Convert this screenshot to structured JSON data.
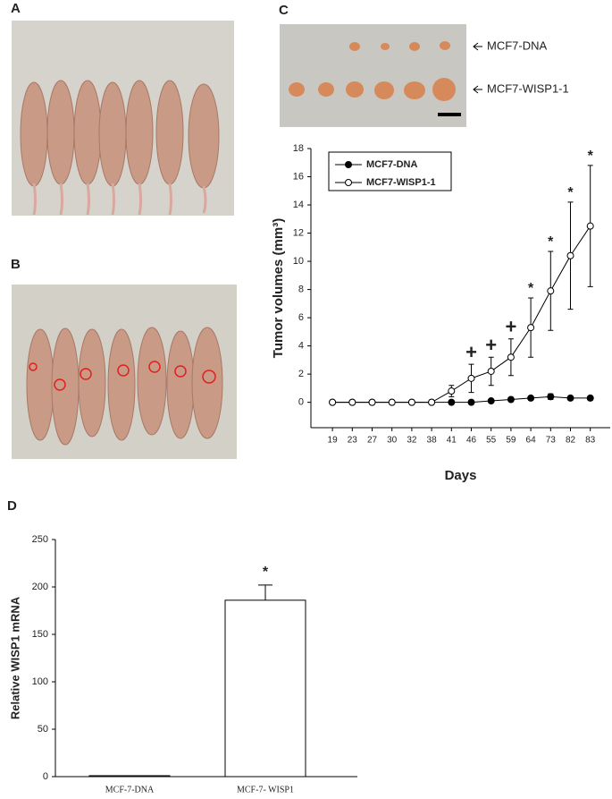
{
  "panels": [
    "A",
    "B",
    "C",
    "D"
  ],
  "photo_labels": [
    "MCF7-DNA",
    "MCF7-WISP1-1"
  ],
  "chart_data": [
    {
      "type": "line",
      "ylabel": "Tumor volumes (mm³)",
      "xlabel": "Days",
      "categories": [
        "19",
        "23",
        "27",
        "30",
        "32",
        "38",
        "41",
        "46",
        "55",
        "59",
        "64",
        "73",
        "82",
        "83"
      ],
      "series": [
        {
          "name": "MCF7-DNA",
          "color": "#000000",
          "marker": "filled",
          "values": [
            0,
            0,
            0,
            0,
            0,
            0,
            0,
            0,
            0.1,
            0.2,
            0.3,
            0.4,
            0.3,
            0.3
          ],
          "errors": [
            0,
            0,
            0,
            0,
            0,
            0,
            0,
            0.05,
            0.1,
            0.1,
            0.15,
            0.2,
            0.15,
            0.15
          ]
        },
        {
          "name": "MCF7-WISP1-1",
          "color": "#000000",
          "marker": "open",
          "values": [
            0,
            0,
            0,
            0,
            0,
            0,
            0.8,
            1.7,
            2.2,
            3.2,
            5.3,
            7.9,
            10.4,
            12.5
          ],
          "errors": [
            0,
            0,
            0,
            0,
            0,
            0,
            0.4,
            1,
            1,
            1.3,
            2.1,
            2.8,
            3.8,
            4.3
          ]
        }
      ],
      "annotations": [
        {
          "text": "+",
          "x": "46"
        },
        {
          "text": "+",
          "x": "55"
        },
        {
          "text": "+",
          "x": "59"
        },
        {
          "text": "*",
          "x": "64"
        },
        {
          "text": "*",
          "x": "73"
        },
        {
          "text": "*",
          "x": "82"
        },
        {
          "text": "*",
          "x": "83"
        }
      ],
      "ylim": [
        -1.8,
        18
      ],
      "yticks": [
        0,
        2,
        4,
        6,
        8,
        10,
        12,
        14,
        16,
        18
      ],
      "grid": false
    },
    {
      "type": "bar",
      "ylabel": "Relative WISP1 mRNA",
      "categories": [
        "MCF-7-DNA",
        "MCF-7- WISP1"
      ],
      "values": [
        1,
        186
      ],
      "errors": [
        0,
        16
      ],
      "color": "#ffffff",
      "annotations": [
        {
          "text": "*",
          "x": "MCF-7- WISP1"
        }
      ],
      "ylim": [
        0,
        250
      ],
      "yticks": [
        0,
        50,
        100,
        150,
        200,
        250
      ],
      "grid": false
    }
  ]
}
